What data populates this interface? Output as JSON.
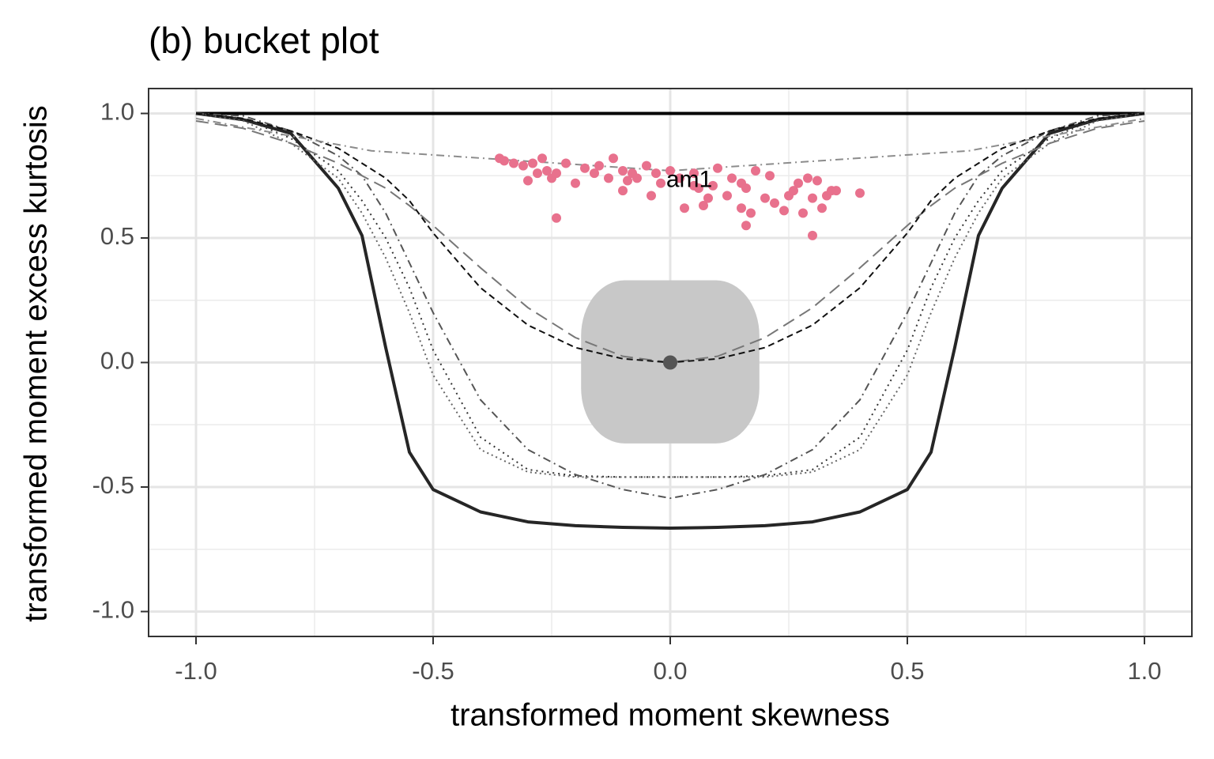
{
  "chart_data": {
    "type": "line",
    "title": "(b) bucket plot",
    "x_label": "transformed moment skewness",
    "y_label": "transformed moment excess kurtosis",
    "xlim": [
      -1.1,
      1.1
    ],
    "ylim": [
      -1.1,
      1.1
    ],
    "xticks": [
      {
        "value": -1,
        "label": "-1.0"
      },
      -0.5,
      {
        "value": 0,
        "label": "0.0"
      },
      0.5,
      {
        "value": 1,
        "label": "1.0"
      }
    ],
    "yticks": [
      {
        "value": -1,
        "label": "-1.0"
      },
      -0.5,
      {
        "value": 0,
        "label": "0.0"
      },
      0.5,
      {
        "value": 1,
        "label": "1.0"
      }
    ],
    "minor_xgrid": [
      -0.75,
      -0.25,
      0.25,
      0.75
    ],
    "minor_ygrid": [
      -0.75,
      -0.25,
      0.25,
      0.75
    ],
    "grid": true,
    "x": [
      -1,
      -0.9,
      -0.8,
      -0.7,
      -0.65,
      -0.6,
      -0.55,
      -0.5,
      -0.4,
      -0.3,
      -0.2,
      -0.1,
      0,
      0.1,
      0.2,
      0.3,
      0.4,
      0.5,
      0.55,
      0.6,
      0.65,
      0.7,
      0.8,
      0.9,
      1
    ],
    "region": {
      "color": "#c8c8c8",
      "xlim": [
        -0.188,
        0.188
      ],
      "ylim": [
        -0.325,
        0.33
      ]
    },
    "series": [
      {
        "color": "#000000",
        "width": 4,
        "dash": "none",
        "x": [
          -1,
          1
        ],
        "values": [
          1,
          1
        ]
      },
      {
        "color": "#262626",
        "width": 4,
        "dash": "none",
        "values": [
          1,
          0.975,
          0.92,
          0.7,
          0.51,
          0.06,
          -0.36,
          -0.51,
          -0.6,
          -0.64,
          -0.655,
          -0.662,
          -0.665,
          -0.662,
          -0.655,
          -0.64,
          -0.6,
          -0.51,
          -0.36,
          0.06,
          0.51,
          0.7,
          0.92,
          0.975,
          1
        ]
      },
      {
        "color": "#333333",
        "width": 2,
        "dash": "2 5",
        "values": [
          1,
          0.98,
          0.9,
          0.77,
          0.65,
          0.5,
          0.3,
          0.05,
          -0.3,
          -0.43,
          -0.455,
          -0.46,
          -0.46,
          -0.46,
          -0.455,
          -0.43,
          -0.3,
          0.05,
          0.3,
          0.5,
          0.65,
          0.77,
          0.9,
          0.98,
          1
        ]
      },
      {
        "color": "#666666",
        "width": 2,
        "dash": "2 4",
        "values": [
          1,
          0.97,
          0.88,
          0.74,
          0.6,
          0.42,
          0.2,
          -0.05,
          -0.35,
          -0.44,
          -0.46,
          -0.46,
          -0.46,
          -0.46,
          -0.46,
          -0.44,
          -0.35,
          -0.05,
          0.2,
          0.42,
          0.6,
          0.74,
          0.88,
          0.97,
          1
        ]
      },
      {
        "color": "#555555",
        "width": 2,
        "dash": "10 5 2 5",
        "values": [
          1,
          0.99,
          0.93,
          0.83,
          0.75,
          0.6,
          0.4,
          0.2,
          -0.15,
          -0.35,
          -0.45,
          -0.51,
          -0.545,
          -0.51,
          -0.45,
          -0.35,
          -0.15,
          0.2,
          0.4,
          0.6,
          0.75,
          0.83,
          0.93,
          0.99,
          1
        ]
      },
      {
        "color": "#777777",
        "width": 2,
        "dash": "16 8",
        "values": [
          0.97,
          0.94,
          0.88,
          0.8,
          0.75,
          0.7,
          0.63,
          0.55,
          0.38,
          0.22,
          0.1,
          0.025,
          0,
          0.025,
          0.1,
          0.22,
          0.38,
          0.55,
          0.63,
          0.7,
          0.75,
          0.8,
          0.88,
          0.94,
          0.97
        ]
      },
      {
        "color": "#111111",
        "width": 2,
        "dash": "8 5",
        "values": [
          1,
          0.98,
          0.93,
          0.86,
          0.8,
          0.74,
          0.65,
          0.52,
          0.3,
          0.15,
          0.06,
          0.015,
          0,
          0.015,
          0.06,
          0.15,
          0.3,
          0.52,
          0.65,
          0.74,
          0.8,
          0.86,
          0.93,
          0.98,
          1
        ]
      },
      {
        "color": "#8c8c8c",
        "width": 2,
        "dash": "10 5 2 5",
        "x": [
          -1,
          -0.63,
          0,
          0.63,
          1
        ],
        "values": [
          0.98,
          0.85,
          0.77,
          0.85,
          0.98
        ]
      }
    ],
    "scatter": [
      {
        "color": "#e8718d",
        "size": 6,
        "x": [
          -0.36,
          -0.35,
          -0.33,
          -0.31,
          -0.3,
          -0.29,
          -0.28,
          -0.27,
          -0.26,
          -0.25,
          -0.24,
          -0.22,
          -0.2,
          -0.18,
          -0.16,
          -0.15,
          -0.13,
          -0.12,
          -0.1,
          -0.09,
          -0.08,
          -0.07,
          -0.05,
          -0.04,
          -0.03,
          -0.02,
          0.0,
          0.02,
          0.03,
          0.05,
          0.06,
          0.07,
          0.08,
          0.09,
          0.1,
          0.12,
          0.13,
          0.15,
          0.15,
          0.16,
          0.17,
          0.18,
          0.2,
          0.21,
          0.22,
          0.24,
          0.25,
          0.26,
          0.27,
          0.28,
          0.29,
          0.3,
          0.31,
          0.32,
          0.33,
          0.34,
          0.35,
          0.4,
          -0.24,
          0.3,
          0.16,
          -0.1,
          0.05
        ],
        "values": [
          0.82,
          0.81,
          0.8,
          0.79,
          0.73,
          0.8,
          0.76,
          0.82,
          0.77,
          0.74,
          0.58,
          0.8,
          0.72,
          0.78,
          0.76,
          0.79,
          0.74,
          0.82,
          0.77,
          0.73,
          0.76,
          0.74,
          0.79,
          0.67,
          0.76,
          0.72,
          0.77,
          0.74,
          0.62,
          0.76,
          0.7,
          0.63,
          0.66,
          0.71,
          0.78,
          0.67,
          0.74,
          0.72,
          0.62,
          0.55,
          0.6,
          0.77,
          0.66,
          0.75,
          0.64,
          0.61,
          0.67,
          0.69,
          0.72,
          0.6,
          0.74,
          0.51,
          0.73,
          0.62,
          0.67,
          0.69,
          0.69,
          0.68,
          0.76,
          0.66,
          0.7,
          0.69,
          0.71
        ]
      },
      {
        "color": "#555555",
        "size": 9,
        "x": [
          0
        ],
        "values": [
          0
        ]
      }
    ],
    "annotations": [
      {
        "text": "am1",
        "x": 0.04,
        "y": 0.73
      }
    ]
  }
}
